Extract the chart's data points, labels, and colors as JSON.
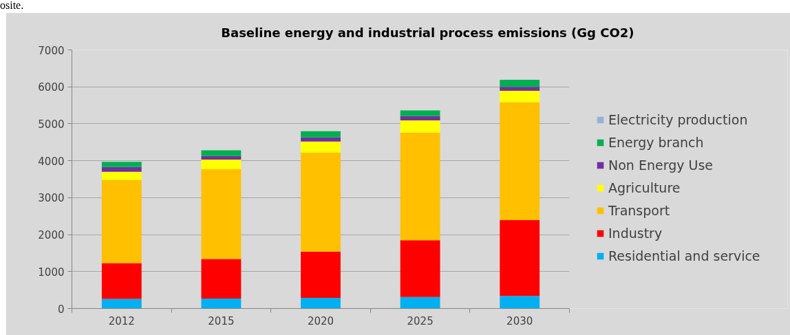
{
  "chart_data": {
    "type": "bar",
    "title": "Baseline  energy and industrial process emissions (Gg CO2)",
    "annotations": [
      "osite."
    ],
    "categories": [
      "2012",
      "2015",
      "2020",
      "2025",
      "2030"
    ],
    "series": [
      {
        "name": "Residential and service",
        "color": "#00b0f0",
        "values": [
          260,
          270,
          290,
          310,
          340
        ]
      },
      {
        "name": "Industry",
        "color": "#ff0000",
        "values": [
          970,
          1070,
          1250,
          1540,
          2050
        ]
      },
      {
        "name": "Transport",
        "color": "#ffc000",
        "values": [
          2250,
          2430,
          2680,
          2910,
          3190
        ]
      },
      {
        "name": "Agriculture",
        "color": "#ffff00",
        "values": [
          220,
          260,
          300,
          330,
          310
        ]
      },
      {
        "name": "Non Energy Use",
        "color": "#7030a0",
        "values": [
          130,
          100,
          110,
          120,
          110
        ]
      },
      {
        "name": "Energy branch",
        "color": "#00b050",
        "values": [
          140,
          150,
          170,
          150,
          190
        ]
      },
      {
        "name": "Electricity production",
        "color": "#95b3d7",
        "values": [
          null,
          null,
          null,
          null,
          null
        ]
      }
    ],
    "stacked": true,
    "ylim": [
      0,
      7000
    ],
    "yticks": [
      0,
      1000,
      2000,
      3000,
      4000,
      5000,
      6000,
      7000
    ],
    "grid": "y",
    "legend": "right"
  }
}
